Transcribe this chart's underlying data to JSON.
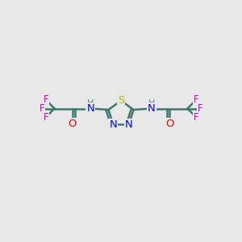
{
  "bg_color": "#e8e8e8",
  "atom_colors": {
    "C": "#3d7a6b",
    "N": "#0000ff",
    "S": "#bbbb00",
    "O": "#ff0000",
    "F": "#cc00cc",
    "H": "#4a9090"
  },
  "bond_color": "#3d7a6b",
  "bond_width": 1.8
}
